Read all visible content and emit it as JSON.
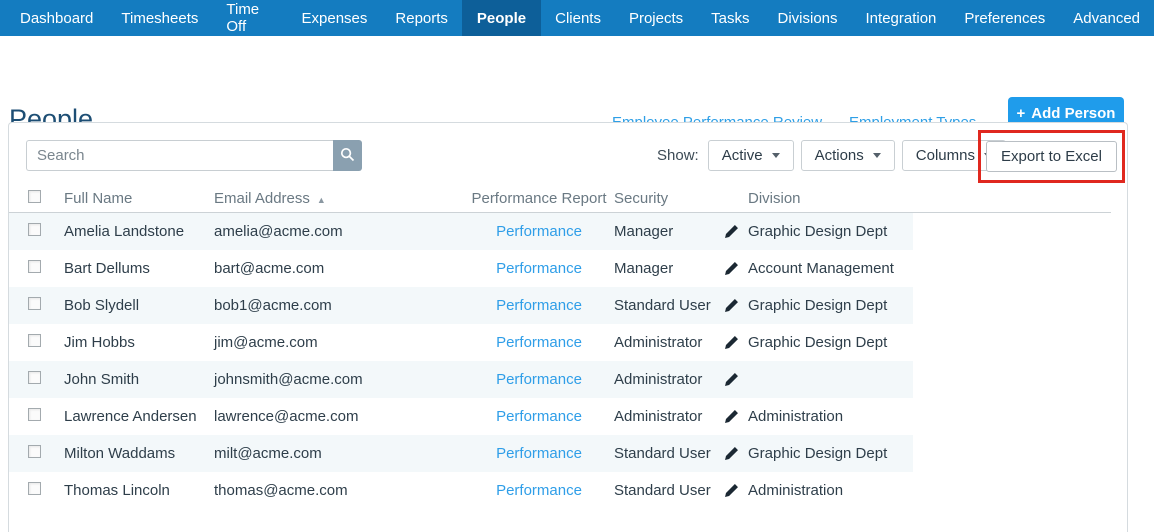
{
  "nav": {
    "items": [
      {
        "label": "Dashboard",
        "active": false
      },
      {
        "label": "Timesheets",
        "active": false
      },
      {
        "label": "Time Off",
        "active": false
      },
      {
        "label": "Expenses",
        "active": false
      },
      {
        "label": "Reports",
        "active": false
      },
      {
        "label": "People",
        "active": true
      },
      {
        "label": "Clients",
        "active": false
      },
      {
        "label": "Projects",
        "active": false
      },
      {
        "label": "Tasks",
        "active": false
      },
      {
        "label": "Divisions",
        "active": false
      },
      {
        "label": "Integration",
        "active": false
      },
      {
        "label": "Preferences",
        "active": false
      },
      {
        "label": "Advanced",
        "active": false
      }
    ]
  },
  "header": {
    "title": "People",
    "link_performance_review": "Employee Performance Review",
    "link_employment_types": "Employment Types",
    "add_person_plus": "+",
    "add_person_label": "Add Person"
  },
  "toolbar": {
    "search_placeholder": "Search",
    "show_label": "Show:",
    "show_filter_value": "Active",
    "actions_label": "Actions",
    "columns_label": "Columns",
    "export_label": "Export to Excel"
  },
  "table": {
    "headers": {
      "full_name": "Full Name",
      "email": "Email Address",
      "sort_arrow": "▲",
      "performance": "Performance Report",
      "security": "Security",
      "division": "Division"
    },
    "rows": [
      {
        "name": "Amelia Landstone",
        "email": "amelia@acme.com",
        "performance": "Performance",
        "security": "Manager",
        "division": "Graphic Design Dept"
      },
      {
        "name": "Bart Dellums",
        "email": "bart@acme.com",
        "performance": "Performance",
        "security": "Manager",
        "division": "Account Management"
      },
      {
        "name": "Bob Slydell",
        "email": "bob1@acme.com",
        "performance": "Performance",
        "security": "Standard User",
        "division": "Graphic Design Dept"
      },
      {
        "name": "Jim Hobbs",
        "email": "jim@acme.com",
        "performance": "Performance",
        "security": "Administrator",
        "division": "Graphic Design Dept"
      },
      {
        "name": "John Smith",
        "email": "johnsmith@acme.com",
        "performance": "Performance",
        "security": "Administrator",
        "division": ""
      },
      {
        "name": "Lawrence Andersen",
        "email": "lawrence@acme.com",
        "performance": "Performance",
        "security": "Administrator",
        "division": "Administration"
      },
      {
        "name": "Milton Waddams",
        "email": "milt@acme.com",
        "performance": "Performance",
        "security": "Standard User",
        "division": "Graphic Design Dept"
      },
      {
        "name": "Thomas Lincoln",
        "email": "thomas@acme.com",
        "performance": "Performance",
        "security": "Standard User",
        "division": "Administration"
      }
    ]
  },
  "colors": {
    "nav_bg": "#147cc0",
    "nav_active_bg": "#0d5f99",
    "link_blue": "#2e9fe6",
    "add_button_blue": "#1f9ceb",
    "title_color": "#1d4e74",
    "row_stripe": "#f3f8fa",
    "annotation_red": "#e0281f",
    "search_button_bg": "#8aa0b0"
  }
}
